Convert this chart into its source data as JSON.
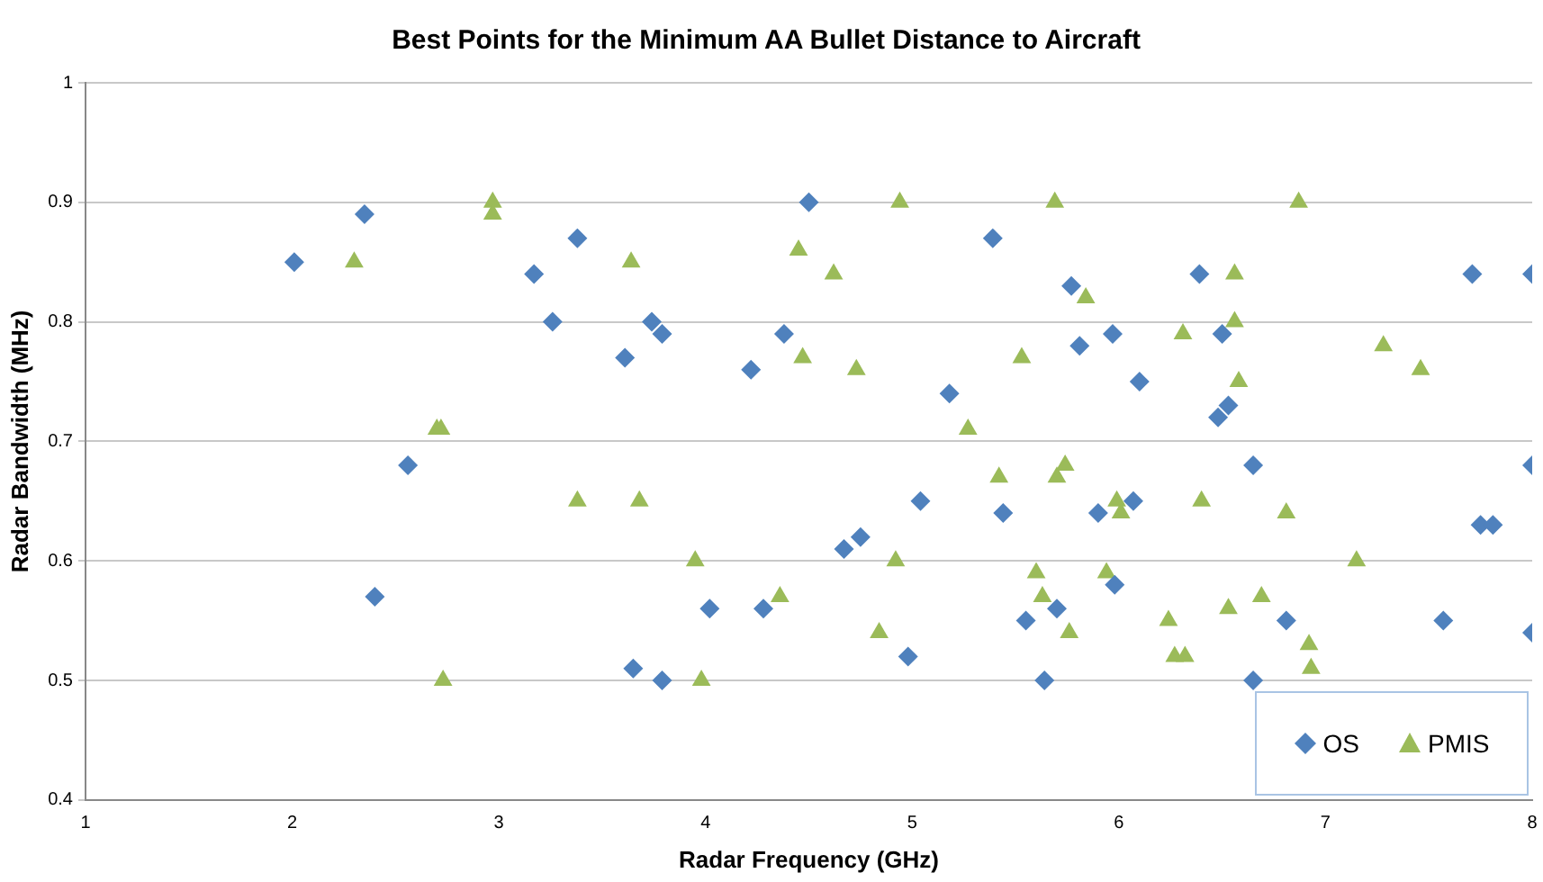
{
  "chart_data": {
    "type": "scatter",
    "title": "Best Points for the Minimum AA Bullet Distance to Aircraft",
    "xlabel": "Radar Frequency (GHz)",
    "ylabel": "Radar Bandwidth (MHz)",
    "xlim": [
      1,
      8
    ],
    "xticks": [
      1,
      2,
      3,
      4,
      5,
      6,
      7,
      8
    ],
    "ylim": [
      0.4,
      1
    ],
    "yticks": [
      0.4,
      0.5,
      0.6,
      0.7,
      0.8,
      0.9,
      1
    ],
    "grid": "y",
    "legend": "bottom right",
    "series": [
      {
        "name": "OS",
        "color": "#4f81bd",
        "marker": "diamond",
        "x": [
          2.01,
          2.35,
          2.4,
          2.56,
          3.17,
          3.26,
          3.38,
          3.61,
          3.65,
          3.74,
          3.79,
          3.79,
          4.02,
          4.22,
          4.28,
          4.38,
          4.5,
          4.67,
          4.75,
          4.98,
          5.04,
          5.18,
          5.39,
          5.44,
          5.55,
          5.64,
          5.7,
          5.77,
          5.81,
          5.9,
          5.97,
          5.98,
          6.07,
          6.1,
          6.39,
          6.48,
          6.5,
          6.53,
          6.65,
          6.65,
          6.81,
          7.57,
          7.71,
          7.75,
          7.81,
          8.0,
          8.0,
          8.0
        ],
        "values": [
          0.85,
          0.89,
          0.57,
          0.68,
          0.84,
          0.8,
          0.87,
          0.77,
          0.51,
          0.8,
          0.79,
          0.5,
          0.56,
          0.76,
          0.56,
          0.79,
          0.9,
          0.61,
          0.62,
          0.52,
          0.65,
          0.74,
          0.87,
          0.64,
          0.55,
          0.5,
          0.56,
          0.83,
          0.78,
          0.64,
          0.79,
          0.58,
          0.65,
          0.75,
          0.84,
          0.72,
          0.79,
          0.73,
          0.68,
          0.5,
          0.55,
          0.55,
          0.84,
          0.63,
          0.63,
          0.84,
          0.68,
          0.54
        ]
      },
      {
        "name": "PMIS",
        "color": "#9bbb59",
        "marker": "triangle",
        "x": [
          2.3,
          2.7,
          2.72,
          2.73,
          2.97,
          2.97,
          3.38,
          3.64,
          3.68,
          3.95,
          3.98,
          4.36,
          4.45,
          4.47,
          4.62,
          4.73,
          4.84,
          4.92,
          4.94,
          5.27,
          5.42,
          5.53,
          5.6,
          5.63,
          5.69,
          5.7,
          5.74,
          5.76,
          5.84,
          5.94,
          5.99,
          6.01,
          6.24,
          6.27,
          6.31,
          6.32,
          6.4,
          6.53,
          6.56,
          6.56,
          6.58,
          6.69,
          6.81,
          6.87,
          6.92,
          6.93,
          7.15,
          7.28,
          7.46
        ],
        "values": [
          0.85,
          0.71,
          0.71,
          0.5,
          0.9,
          0.89,
          0.65,
          0.85,
          0.65,
          0.6,
          0.5,
          0.57,
          0.86,
          0.77,
          0.84,
          0.76,
          0.54,
          0.6,
          0.9,
          0.71,
          0.67,
          0.77,
          0.59,
          0.57,
          0.9,
          0.67,
          0.68,
          0.54,
          0.82,
          0.59,
          0.65,
          0.64,
          0.55,
          0.52,
          0.79,
          0.52,
          0.65,
          0.56,
          0.84,
          0.8,
          0.75,
          0.57,
          0.64,
          0.9,
          0.53,
          0.51,
          0.6,
          0.78,
          0.76
        ]
      }
    ]
  }
}
